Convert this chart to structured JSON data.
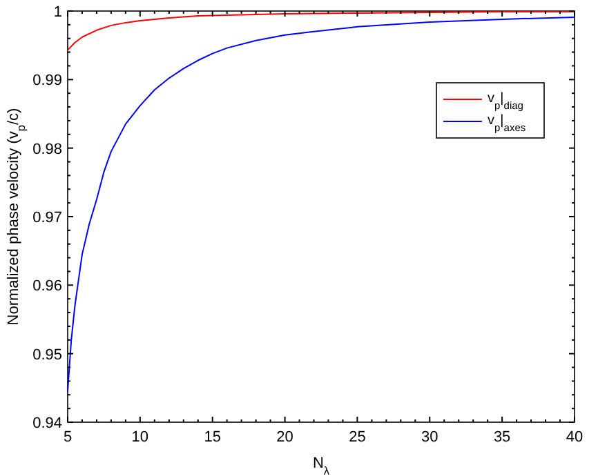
{
  "chart_data": {
    "type": "line",
    "xlabel": "N$_{λ}$",
    "ylabel": "Normalized phase velocity (v$_{p}$/c)",
    "xlim": [
      5,
      40
    ],
    "xticks": [
      5,
      10,
      15,
      20,
      25,
      30,
      35,
      40
    ],
    "ylim": [
      0.94,
      1
    ],
    "yticks": [
      0.94,
      0.95,
      0.96,
      0.97,
      0.98,
      0.99,
      1
    ],
    "legend": "top right",
    "grid": false,
    "series": [
      {
        "name": "v$_{p}$|$_{diag}$",
        "color": "#ff0000",
        "x": [
          5,
          5.5,
          6,
          7,
          8,
          9,
          10,
          12,
          14,
          16,
          18,
          20,
          25,
          30,
          35,
          40
        ],
        "values": [
          0.9943,
          0.9954,
          0.9962,
          0.9972,
          0.9979,
          0.9983,
          0.9986,
          0.999,
          0.9993,
          0.9994,
          0.9995,
          0.9996,
          0.9997,
          0.9998,
          0.9999,
          0.9999
        ]
      },
      {
        "name": "v$_{p}$|$_{axes}$",
        "color": "#0000ff",
        "x": [
          5,
          5.25,
          5.5,
          6,
          6.5,
          7,
          7.5,
          8,
          9,
          10,
          11,
          12,
          13,
          14,
          15,
          16,
          18,
          20,
          22,
          25,
          30,
          35,
          40
        ],
        "values": [
          0.9445,
          0.952,
          0.957,
          0.9645,
          0.969,
          0.9725,
          0.9765,
          0.9795,
          0.9835,
          0.9862,
          0.9885,
          0.9902,
          0.9916,
          0.9928,
          0.9938,
          0.9946,
          0.9957,
          0.9965,
          0.997,
          0.9977,
          0.9984,
          0.9988,
          0.9991
        ]
      }
    ]
  }
}
